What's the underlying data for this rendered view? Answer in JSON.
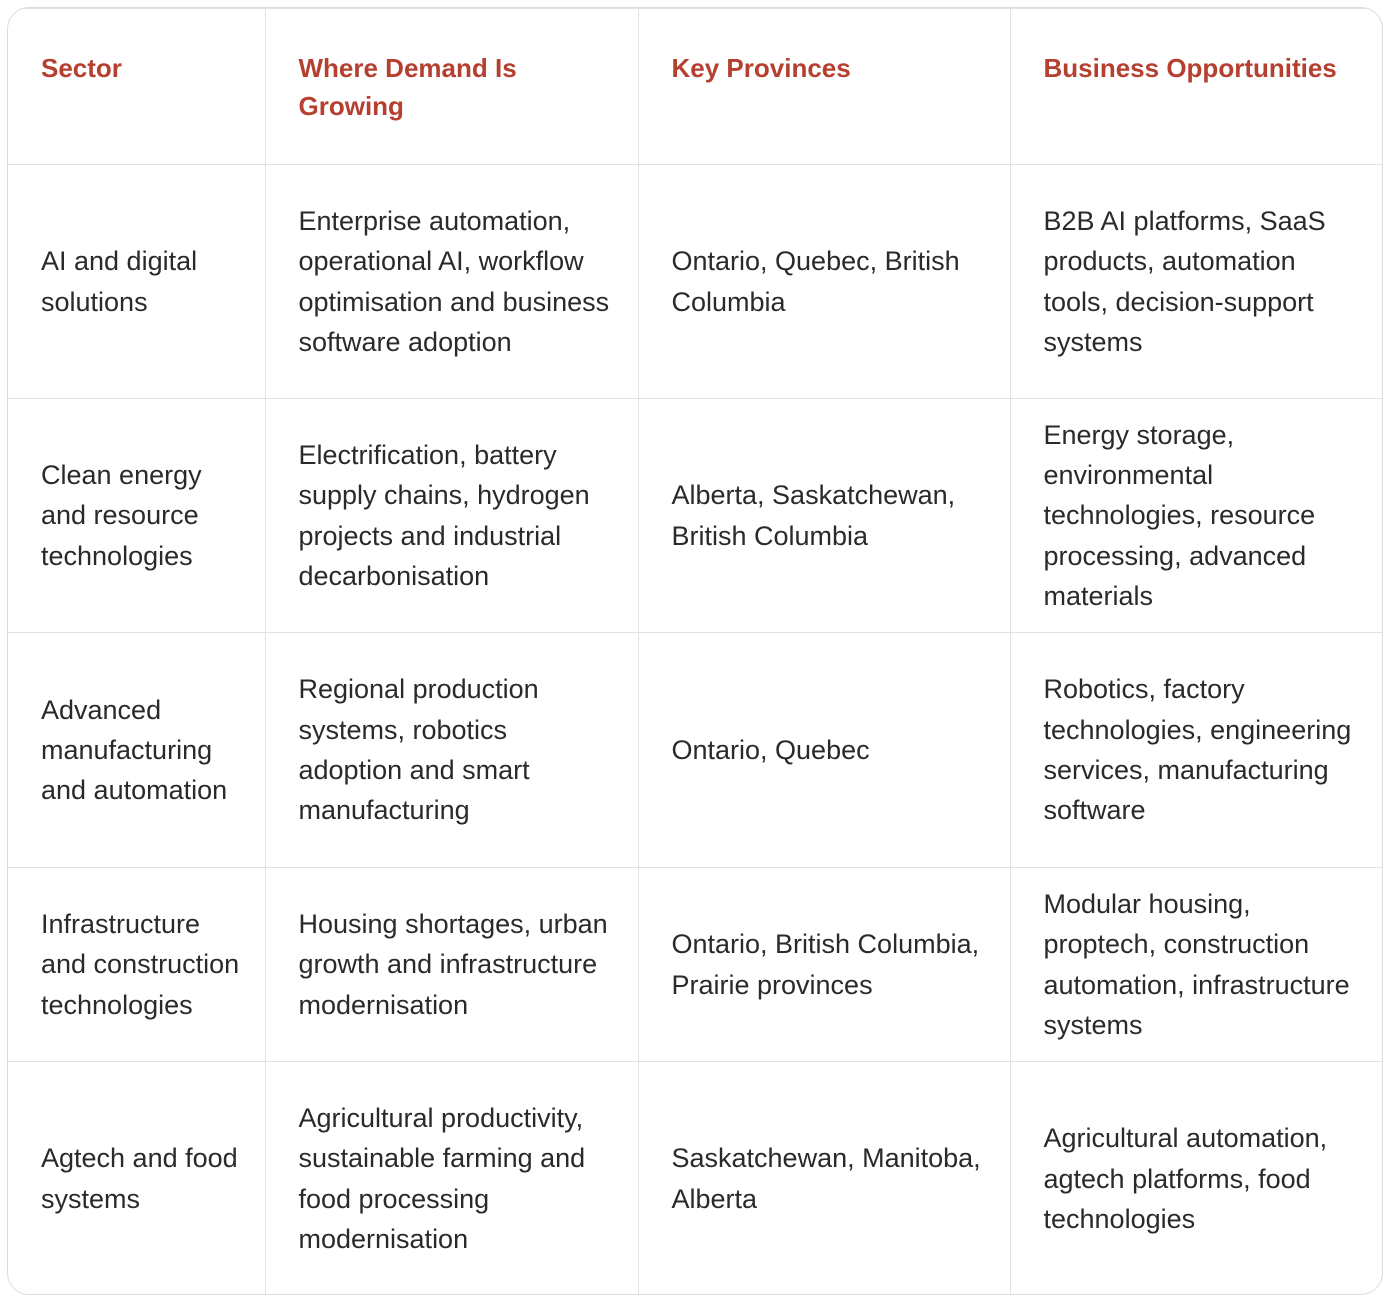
{
  "table": {
    "header": [
      "Sector",
      "Where Demand Is Growing",
      "Key Provinces",
      "Business Opportunities"
    ],
    "rows": [
      [
        "AI and digital solutions",
        "Enterprise automation, operational AI, workflow optimisation and business software adoption",
        "Ontario, Quebec, British Columbia",
        "B2B AI platforms, SaaS products, automation tools, decision-support systems"
      ],
      [
        "Clean energy and resource technologies",
        "Electrification, battery supply chains, hydrogen projects and industrial decarbonisation",
        "Alberta, Saskatchewan, British Columbia",
        "Energy storage, environmental technologies, resource processing, advanced materials"
      ],
      [
        "Advanced manufacturing and automation",
        "Regional production systems, robotics adoption and smart manufacturing",
        "Ontario, Quebec",
        "Robotics, factory technologies, engineering services, manufacturing software"
      ],
      [
        "Infrastructure and construction technologies",
        "Housing shortages, urban growth and infrastructure modernisation",
        "Ontario, British Columbia, Prairie provinces",
        "Modular housing, proptech, construction automation, infrastructure systems"
      ],
      [
        "Agtech and food systems",
        "Agricultural productivity, sustainable farming and food processing modernisation",
        "Saskatchewan, Manitoba, Alberta",
        "Agricultural automation, agtech platforms, food technologies"
      ]
    ]
  }
}
